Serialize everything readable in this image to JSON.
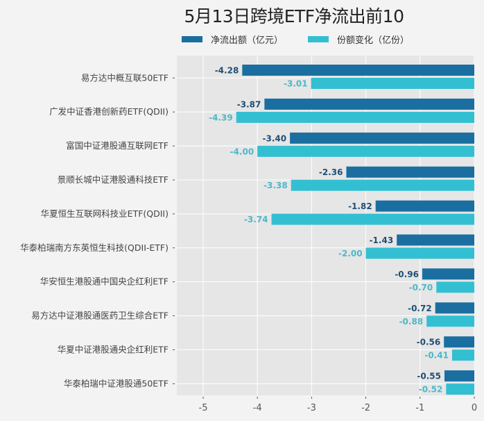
{
  "chart_data": {
    "type": "bar",
    "orientation": "horizontal",
    "title": "5月13日跨境ETF净流出前10",
    "xlabel": "",
    "ylabel": "",
    "xlim": [
      -5.5,
      0
    ],
    "xticks": [
      -5,
      -4,
      -3,
      -2,
      -1,
      0
    ],
    "xtick_labels": [
      "-5",
      "-4",
      "-3",
      "-2",
      "-1",
      "0"
    ],
    "grid": true,
    "legend_position": "top",
    "categories": [
      "易方达中概互联50ETF",
      "广发中证香港创新药ETF(QDII)",
      "富国中证港股通互联网ETF",
      "景顺长城中证港股通科技ETF",
      "华夏恒生互联网科技业ETF(QDII)",
      "华泰柏瑞南方东英恒生科技(QDII-ETF)",
      "华安恒生港股通中国央企红利ETF",
      "易方达中证港股通医药卫生综合ETF",
      "华夏中证港股通央企红利ETF",
      "华泰柏瑞中证港股通50ETF"
    ],
    "series": [
      {
        "name": "净流出额（亿元）",
        "color": "#1a6fa0",
        "values": [
          -4.28,
          -3.87,
          -3.4,
          -2.36,
          -1.82,
          -1.43,
          -0.96,
          -0.72,
          -0.56,
          -0.55
        ],
        "labels": [
          "-4.28",
          "-3.87",
          "-3.40",
          "-2.36",
          "-1.82",
          "-1.43",
          "-0.96",
          "-0.72",
          "-0.56",
          "-0.55"
        ],
        "label_color": "#1f4f75"
      },
      {
        "name": "份额变化（亿份）",
        "color": "#33bfd2",
        "values": [
          -3.01,
          -4.39,
          -4.0,
          -3.38,
          -3.74,
          -2.0,
          -0.7,
          -0.88,
          -0.41,
          -0.52
        ],
        "labels": [
          "-3.01",
          "-4.39",
          "-4.00",
          "-3.38",
          "-3.74",
          "-2.00",
          "-0.70",
          "-0.88",
          "-0.41",
          "-0.52"
        ],
        "label_color": "#4db8c8"
      }
    ]
  },
  "colors": {
    "plot_background": "#e6e6e6",
    "page_background": "#f3f3f3",
    "gridline": "#ffffff"
  }
}
